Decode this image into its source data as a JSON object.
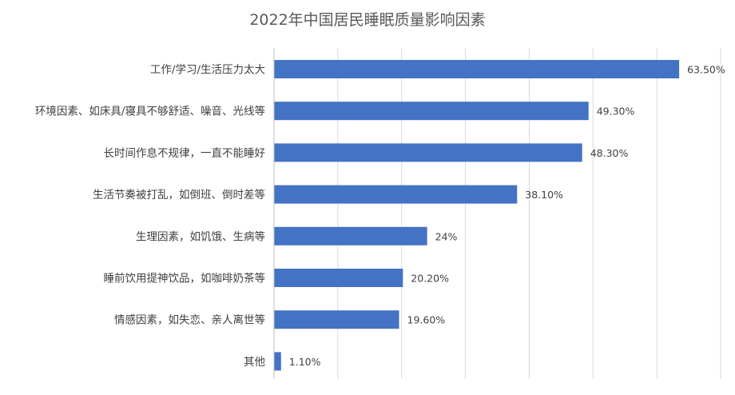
{
  "chart_data": {
    "type": "bar",
    "orientation": "horizontal",
    "title": "2022年中国居民睡眠质量影响因素",
    "categories": [
      "工作/学习/生活压力太大",
      "环境因素、如床具/寝具不够舒适、噪音、光线等",
      "长时间作息不规律，一直不能睡好",
      "生活节奏被打乱，如倒班、倒时差等",
      "生理因素，如饥饿、生病等",
      "睡前饮用提神饮品，如咖啡奶茶等",
      "情感因素，如失恋、亲人离世等",
      "其他"
    ],
    "values": [
      63.5,
      49.3,
      48.3,
      38.1,
      24,
      20.2,
      19.6,
      1.1
    ],
    "value_labels": [
      "63.50%",
      "49.30%",
      "48.30%",
      "38.10%",
      "24%",
      "20.20%",
      "19.60%",
      "1.10%"
    ],
    "xlim": [
      0,
      70
    ],
    "grid": true,
    "legend": "none",
    "bar_color": "#4472c4"
  }
}
